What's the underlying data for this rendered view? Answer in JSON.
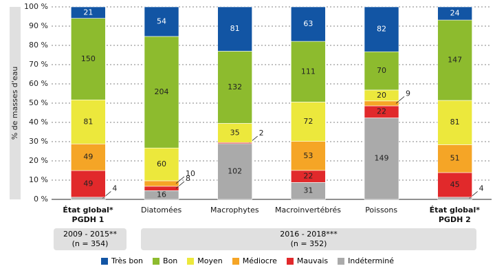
{
  "chart_data": {
    "type": "stacked-percent-bar",
    "y_label": "% de masses d'eau",
    "categories": [
      "État global*\nPGDH 1",
      "Diatomées",
      "Macrophytes",
      "Macroinvertébrés",
      "Poissons",
      "État global*\nPGDH 2"
    ],
    "bold_categories": [
      true,
      false,
      false,
      false,
      false,
      true
    ],
    "groups": [
      "2009 - 2015**\n(n = 354)",
      "2016 - 2018***\n(n = 352)"
    ],
    "series": [
      {
        "name": "Très bon",
        "color": "#1255a4",
        "values": [
          21,
          54,
          81,
          63,
          82,
          24
        ]
      },
      {
        "name": "Bon",
        "color": "#8dbb2e",
        "values": [
          150,
          204,
          132,
          111,
          70,
          147
        ]
      },
      {
        "name": "Moyen",
        "color": "#ece83c",
        "values": [
          81,
          60,
          35,
          72,
          20,
          81
        ]
      },
      {
        "name": "Médiocre",
        "color": "#f5a526",
        "values": [
          49,
          10,
          0,
          53,
          9,
          51
        ]
      },
      {
        "name": "Mauvais",
        "color": "#e1292b",
        "values": [
          49,
          8,
          2,
          22,
          22,
          45
        ]
      },
      {
        "name": "Indéterminé",
        "color": "#aaaaaa",
        "values": [
          4,
          16,
          102,
          31,
          149,
          4
        ]
      }
    ],
    "ylim": [
      0,
      100
    ],
    "yticks": [
      {
        "value": 0,
        "label": "0 %"
      },
      {
        "value": 10,
        "label": "10 %"
      },
      {
        "value": 20,
        "label": "20 %"
      },
      {
        "value": 30,
        "label": "30 %"
      },
      {
        "value": 40,
        "label": "40 %"
      },
      {
        "value": 50,
        "label": "50 %"
      },
      {
        "value": 60,
        "label": "60 %"
      },
      {
        "value": 70,
        "label": "70 %"
      },
      {
        "value": 80,
        "label": "80 %"
      },
      {
        "value": 90,
        "label": "90 %"
      },
      {
        "value": 100,
        "label": "100 %"
      }
    ],
    "grid": true
  }
}
